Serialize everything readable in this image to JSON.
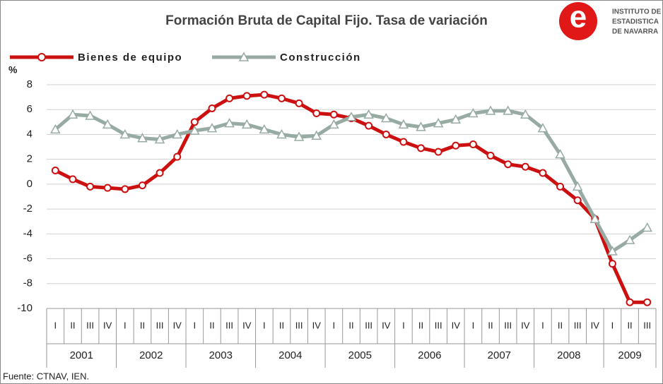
{
  "chart_data": {
    "type": "line",
    "title": "Formación Bruta de Capital Fijo. Tasa de variación",
    "y_label": "%",
    "source": "Fuente: CTNAV, IEN.",
    "logo": [
      "INSTITUTO DE",
      "ESTADISTICA",
      "DE NAVARRA"
    ],
    "categories": [
      "I",
      "II",
      "III",
      "IV",
      "I",
      "II",
      "III",
      "IV",
      "I",
      "II",
      "III",
      "IV",
      "I",
      "II",
      "III",
      "IV",
      "I",
      "II",
      "III",
      "IV",
      "I",
      "II",
      "III",
      "IV",
      "I",
      "II",
      "III",
      "IV",
      "I",
      "II",
      "III",
      "IV",
      "I",
      "II",
      "III"
    ],
    "groups": [
      "2001",
      "2002",
      "2003",
      "2004",
      "2005",
      "2006",
      "2007",
      "2008",
      "2009"
    ],
    "series": [
      {
        "name": "Bienes de equipo",
        "color": "#cc1010",
        "marker": "circle",
        "values": [
          1.1,
          0.4,
          -0.2,
          -0.3,
          -0.4,
          -0.1,
          0.9,
          2.2,
          5.0,
          6.1,
          6.9,
          7.1,
          7.2,
          6.9,
          6.5,
          5.7,
          5.6,
          5.3,
          4.7,
          4.0,
          3.4,
          2.9,
          2.6,
          3.1,
          3.2,
          2.3,
          1.6,
          1.4,
          0.9,
          -0.2,
          -1.3,
          -2.8,
          -6.4,
          -9.5,
          -9.5
        ]
      },
      {
        "name": "Construcción",
        "color": "#98aba3",
        "marker": "triangle",
        "values": [
          4.4,
          5.6,
          5.5,
          4.8,
          4.0,
          3.7,
          3.6,
          4.0,
          4.3,
          4.5,
          4.9,
          4.8,
          4.4,
          4.0,
          3.8,
          3.9,
          4.8,
          5.4,
          5.6,
          5.3,
          4.8,
          4.6,
          4.9,
          5.2,
          5.7,
          5.9,
          5.9,
          5.6,
          4.5,
          2.4,
          -0.2,
          -2.8,
          -5.4,
          -4.5,
          -3.5
        ]
      }
    ],
    "ylim": [
      -10,
      8
    ],
    "yticks": [
      8,
      6,
      4,
      2,
      0,
      -2,
      -4,
      -6,
      -8,
      -10
    ],
    "grid": true
  }
}
